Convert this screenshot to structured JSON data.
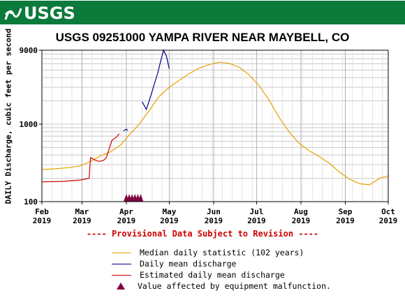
{
  "header": {
    "logo_text": "USGS",
    "color": "#0b7a3b"
  },
  "chart_data": {
    "type": "line",
    "title": "USGS 09251000 YAMPA RIVER NEAR MAYBELL, CO",
    "ylabel": "DAILY Discharge, cubic feet per second",
    "xlabel": "",
    "yscale": "log",
    "ylim": [
      100,
      9000
    ],
    "y_ticks": [
      "100",
      "1000",
      "9000"
    ],
    "xlim": [
      "2019-02-01",
      "2019-10-01"
    ],
    "x_ticks": [
      {
        "date": "2019-02-01",
        "label": "Feb",
        "year": "2019"
      },
      {
        "date": "2019-03-01",
        "label": "Mar",
        "year": "2019"
      },
      {
        "date": "2019-04-01",
        "label": "Apr",
        "year": "2019"
      },
      {
        "date": "2019-05-01",
        "label": "May",
        "year": "2019"
      },
      {
        "date": "2019-06-01",
        "label": "Jun",
        "year": "2019"
      },
      {
        "date": "2019-07-01",
        "label": "Jul",
        "year": "2019"
      },
      {
        "date": "2019-08-01",
        "label": "Aug",
        "year": "2019"
      },
      {
        "date": "2019-09-01",
        "label": "Sep",
        "year": "2019"
      },
      {
        "date": "2019-10-01",
        "label": "Oct",
        "year": "2019"
      }
    ],
    "grid": true,
    "series": [
      {
        "name": "Median daily statistic (102 years)",
        "color": "#e8a000",
        "points": [
          [
            "2019-02-01",
            260
          ],
          [
            "2019-02-10",
            265
          ],
          [
            "2019-02-20",
            275
          ],
          [
            "2019-02-28",
            290
          ],
          [
            "2019-03-07",
            330
          ],
          [
            "2019-03-14",
            390
          ],
          [
            "2019-03-21",
            440
          ],
          [
            "2019-03-28",
            540
          ],
          [
            "2019-04-04",
            760
          ],
          [
            "2019-04-10",
            1000
          ],
          [
            "2019-04-17",
            1500
          ],
          [
            "2019-04-24",
            2300
          ],
          [
            "2019-05-01",
            3000
          ],
          [
            "2019-05-08",
            3700
          ],
          [
            "2019-05-15",
            4500
          ],
          [
            "2019-05-22",
            5300
          ],
          [
            "2019-05-29",
            5900
          ],
          [
            "2019-06-05",
            6300
          ],
          [
            "2019-06-12",
            6100
          ],
          [
            "2019-06-19",
            5400
          ],
          [
            "2019-06-26",
            4300
          ],
          [
            "2019-07-03",
            3100
          ],
          [
            "2019-07-10",
            2000
          ],
          [
            "2019-07-17",
            1200
          ],
          [
            "2019-07-24",
            780
          ],
          [
            "2019-07-31",
            560
          ],
          [
            "2019-08-07",
            450
          ],
          [
            "2019-08-14",
            380
          ],
          [
            "2019-08-21",
            310
          ],
          [
            "2019-08-28",
            240
          ],
          [
            "2019-09-04",
            195
          ],
          [
            "2019-09-11",
            170
          ],
          [
            "2019-09-18",
            165
          ],
          [
            "2019-09-25",
            200
          ],
          [
            "2019-10-01",
            215
          ]
        ]
      },
      {
        "name": "Daily mean discharge",
        "color": "#00008b",
        "points": [
          [
            "2019-03-30",
            820
          ],
          [
            "2019-04-01",
            860
          ],
          [
            "2019-04-02",
            830
          ],
          null,
          [
            "2019-04-12",
            1950
          ],
          [
            "2019-04-15",
            1550
          ],
          [
            "2019-04-18",
            2300
          ],
          [
            "2019-04-21",
            3500
          ],
          [
            "2019-04-23",
            4600
          ],
          [
            "2019-04-25",
            6500
          ],
          [
            "2019-04-27",
            9000
          ],
          [
            "2019-04-29",
            7600
          ],
          [
            "2019-05-01",
            5200
          ]
        ]
      },
      {
        "name": "Estimated daily mean discharge",
        "color": "#cc0000",
        "points": [
          [
            "2019-02-01",
            180
          ],
          [
            "2019-02-15",
            182
          ],
          [
            "2019-02-28",
            190
          ],
          [
            "2019-03-06",
            200
          ],
          [
            "2019-03-07",
            370
          ],
          [
            "2019-03-10",
            345
          ],
          [
            "2019-03-13",
            330
          ],
          [
            "2019-03-16",
            340
          ],
          [
            "2019-03-18",
            370
          ],
          [
            "2019-03-22",
            620
          ],
          [
            "2019-03-25",
            680
          ],
          [
            "2019-03-27",
            750
          ]
        ]
      }
    ],
    "markers": {
      "name": "Value affected by equipment malfunction.",
      "color": "#800040",
      "dates": [
        "2019-04-01",
        "2019-04-03",
        "2019-04-05",
        "2019-04-07",
        "2019-04-09",
        "2019-04-11"
      ]
    }
  },
  "provisional_text": "---- Provisional Data Subject to Revision ----"
}
